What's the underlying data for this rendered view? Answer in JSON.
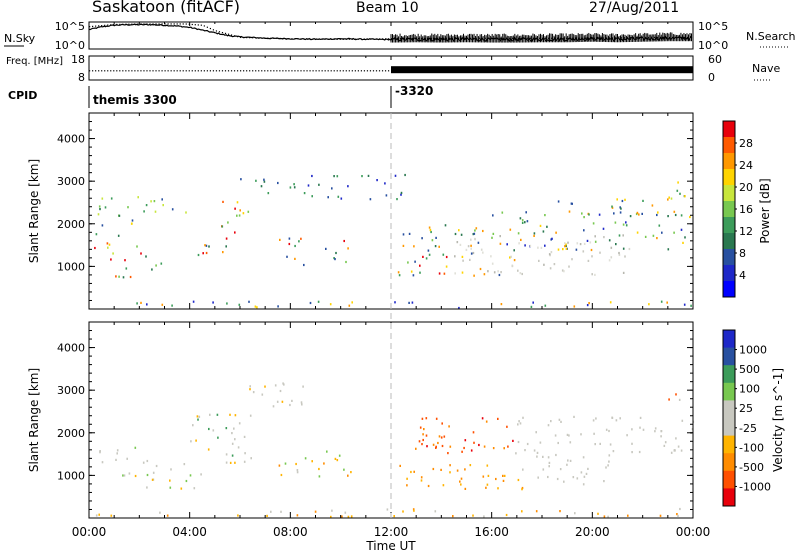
{
  "chart_data": [
    {
      "type": "line",
      "header": {
        "station": "Saskatoon (fitACF)",
        "beam": "Beam 10",
        "date": "27/Aug/2011"
      },
      "left_label": "N.Sky",
      "right_label": "N.Search",
      "left_ticks": [
        "10^5",
        "10^0"
      ],
      "right_ticks": [
        "10^5",
        "10^0"
      ],
      "series": [
        {
          "style": "solid",
          "x_hours": [
            0,
            0.5,
            1,
            1.5,
            2,
            2.5,
            3,
            3.5,
            4,
            4.5,
            5,
            5.5,
            6,
            7,
            8,
            9,
            10,
            11,
            12,
            13,
            14,
            15,
            16,
            17,
            18,
            19,
            20,
            21,
            22,
            23,
            24
          ],
          "level": [
            0.72,
            0.82,
            0.88,
            0.9,
            0.9,
            0.9,
            0.88,
            0.85,
            0.8,
            0.7,
            0.6,
            0.5,
            0.45,
            0.4,
            0.38,
            0.36,
            0.38,
            0.36,
            0.35,
            0.36,
            0.35,
            0.36,
            0.35,
            0.35,
            0.36,
            0.36,
            0.38,
            0.36,
            0.38,
            0.4,
            0.4
          ]
        },
        {
          "style": "dotted",
          "x_hours": [
            0,
            1,
            2,
            3,
            3.8,
            4.5,
            5,
            6,
            8,
            10,
            12,
            14,
            16,
            18,
            20,
            22,
            24
          ],
          "level": [
            0.85,
            0.93,
            0.95,
            0.95,
            0.95,
            0.9,
            0.7,
            0.45,
            0.4,
            0.38,
            0.4,
            0.42,
            0.42,
            0.42,
            0.42,
            0.45,
            0.45
          ]
        }
      ]
    },
    {
      "type": "line",
      "left_label": "Freq. [MHz]",
      "right_label": "Nave",
      "left_ticks": [
        "18",
        "8"
      ],
      "right_ticks": [
        "60",
        "0"
      ],
      "series": [
        {
          "style": "dotted",
          "x_hours": [
            0,
            12
          ],
          "level": [
            0.45,
            0.47
          ]
        },
        {
          "style": "dense",
          "x_hours": [
            12,
            24
          ],
          "level": [
            0.45,
            0.45
          ]
        }
      ]
    },
    {
      "type": "table",
      "label": "CPID",
      "segments": [
        {
          "start_hour": 0,
          "text": "themis 3300"
        },
        {
          "start_hour": 12,
          "text": "-3320"
        }
      ]
    },
    {
      "type": "heatmap",
      "quantity": "Power",
      "ylabel": "Slant Range [km]",
      "y_ticks": [
        1000,
        2000,
        3000,
        4000
      ],
      "ylim": [
        0,
        4600
      ],
      "xlim": [
        0,
        24
      ],
      "colorbar": {
        "label": "Power [dB]",
        "ticks": [
          "28",
          "24",
          "20",
          "16",
          "12",
          "8",
          "4"
        ],
        "colors": [
          "#e8000b",
          "#ff5a00",
          "#ff9800",
          "#ffd400",
          "#c8e63c",
          "#78c850",
          "#3c9c5a",
          "#2a7850",
          "#2850a0",
          "#1e28c8",
          "#0000ff"
        ]
      },
      "blobs": [
        {
          "x": [
            0.2,
            2.5
          ],
          "y": [
            1150,
            1800
          ],
          "c": [
            0,
            1,
            2,
            3,
            4,
            5,
            6,
            7
          ]
        },
        {
          "x": [
            1.0,
            3.5
          ],
          "y": [
            750,
            1150
          ],
          "c": [
            0,
            1,
            2,
            5,
            6,
            7,
            8
          ]
        },
        {
          "x": [
            0.2,
            1.2
          ],
          "y": [
            1900,
            2700
          ],
          "c": [
            4,
            5,
            6,
            7,
            8
          ]
        },
        {
          "x": [
            1.5,
            2.5
          ],
          "y": [
            2000,
            2700
          ],
          "c": [
            3,
            4,
            5,
            6,
            8
          ]
        },
        {
          "x": [
            2.5,
            4.0
          ],
          "y": [
            2200,
            2600
          ],
          "c": [
            4,
            5,
            6,
            8
          ]
        },
        {
          "x": [
            3.5,
            5.5
          ],
          "y": [
            1200,
            1700
          ],
          "c": [
            0,
            1,
            2,
            5,
            6,
            7,
            8
          ]
        },
        {
          "x": [
            5.2,
            6.4
          ],
          "y": [
            1800,
            2600
          ],
          "c": [
            0,
            1,
            2,
            3,
            5,
            6,
            8
          ]
        },
        {
          "x": [
            6.0,
            8.5
          ],
          "y": [
            2700,
            3100
          ],
          "c": [
            8,
            9,
            7,
            6
          ]
        },
        {
          "x": [
            7.5,
            9.0
          ],
          "y": [
            1000,
            1700
          ],
          "c": [
            0,
            1,
            2,
            5,
            6,
            8
          ]
        },
        {
          "x": [
            9.3,
            10.3
          ],
          "y": [
            1100,
            1700
          ],
          "c": [
            0,
            1,
            2,
            5,
            6,
            7,
            8
          ]
        },
        {
          "x": [
            8.5,
            12.7
          ],
          "y": [
            2600,
            3200
          ],
          "c": [
            8,
            9,
            7,
            6
          ]
        },
        {
          "x": [
            12.2,
            17.0
          ],
          "y": [
            800,
            1300
          ],
          "c": [
            0,
            1,
            2,
            3,
            5,
            6,
            8
          ]
        },
        {
          "x": [
            12.2,
            16.0
          ],
          "y": [
            1300,
            2000
          ],
          "c": [
            5,
            6,
            7,
            8,
            2,
            3
          ]
        },
        {
          "x": [
            16.0,
            24.0
          ],
          "y": [
            1400,
            2300
          ],
          "c": [
            5,
            6,
            7,
            8,
            2,
            3,
            9
          ]
        },
        {
          "x": [
            18.5,
            24.0
          ],
          "y": [
            2200,
            2600
          ],
          "c": [
            6,
            7,
            8,
            3,
            2
          ]
        },
        {
          "x": [
            22.8,
            24.0
          ],
          "y": [
            2600,
            3200
          ],
          "c": [
            6,
            7,
            4,
            3
          ]
        },
        {
          "x": [
            14.5,
            21.5
          ],
          "y": [
            800,
            1800
          ],
          "gray": true
        },
        {
          "x": [
            0.2,
            24.0
          ],
          "y": [
            50,
            200
          ],
          "c": [
            8,
            9,
            3,
            2,
            6
          ]
        }
      ]
    },
    {
      "type": "heatmap",
      "quantity": "Velocity",
      "ylabel": "Slant Range [km]",
      "y_ticks": [
        1000,
        2000,
        3000,
        4000
      ],
      "ylim": [
        0,
        4600
      ],
      "xlim": [
        0,
        24
      ],
      "xticks": [
        "00:00",
        "04:00",
        "08:00",
        "12:00",
        "16:00",
        "20:00",
        "00:00"
      ],
      "xlabel": "Time UT",
      "colorbar": {
        "label": "Velocity [m s^-1]",
        "ticks": [
          "1000",
          "500",
          "100",
          "25",
          "-25",
          "-100",
          "-500",
          "-1000"
        ],
        "colors": [
          "#1e28c8",
          "#2850a0",
          "#3c9c5a",
          "#78c850",
          "#c8c8c0",
          "#c8c8c0",
          "#ffb400",
          "#ff8c00",
          "#ff5000",
          "#e8000b"
        ]
      },
      "blobs": [
        {
          "x": [
            0.2,
            2.5
          ],
          "y": [
            1300,
            1700
          ],
          "c": [
            4,
            4,
            4,
            6,
            3
          ]
        },
        {
          "x": [
            1.0,
            4.5
          ],
          "y": [
            700,
            1100
          ],
          "c": [
            4,
            4,
            3,
            6
          ]
        },
        {
          "x": [
            2.0,
            4.5
          ],
          "y": [
            1100,
            1300
          ],
          "c": [
            6,
            7,
            4
          ]
        },
        {
          "x": [
            4.0,
            6.5
          ],
          "y": [
            1300,
            2500
          ],
          "c": [
            4,
            4,
            4,
            2,
            6
          ]
        },
        {
          "x": [
            6.0,
            8.5
          ],
          "y": [
            2600,
            3200
          ],
          "c": [
            4,
            4,
            4,
            6
          ]
        },
        {
          "x": [
            7.5,
            9.2
          ],
          "y": [
            1000,
            1600
          ],
          "c": [
            6,
            7,
            3,
            4,
            2
          ]
        },
        {
          "x": [
            9.3,
            10.4
          ],
          "y": [
            1000,
            1600
          ],
          "c": [
            6,
            7,
            3,
            4
          ]
        },
        {
          "x": [
            12.2,
            17.5
          ],
          "y": [
            700,
            1300
          ],
          "c": [
            6,
            7,
            6,
            7
          ]
        },
        {
          "x": [
            12.5,
            17.0
          ],
          "y": [
            1500,
            2400
          ],
          "c": [
            8,
            9,
            8,
            7
          ]
        },
        {
          "x": [
            16.5,
            24.0
          ],
          "y": [
            1500,
            2400
          ],
          "c": [
            4,
            4,
            4,
            4
          ]
        },
        {
          "x": [
            17.0,
            21.0
          ],
          "y": [
            800,
            1500
          ],
          "c": [
            4,
            4,
            4
          ]
        },
        {
          "x": [
            22.8,
            24.0
          ],
          "y": [
            2700,
            3200
          ],
          "c": [
            8,
            7,
            6,
            4
          ]
        },
        {
          "x": [
            0.2,
            24.0
          ],
          "y": [
            50,
            250
          ],
          "c": [
            6,
            7,
            4
          ]
        }
      ]
    }
  ]
}
